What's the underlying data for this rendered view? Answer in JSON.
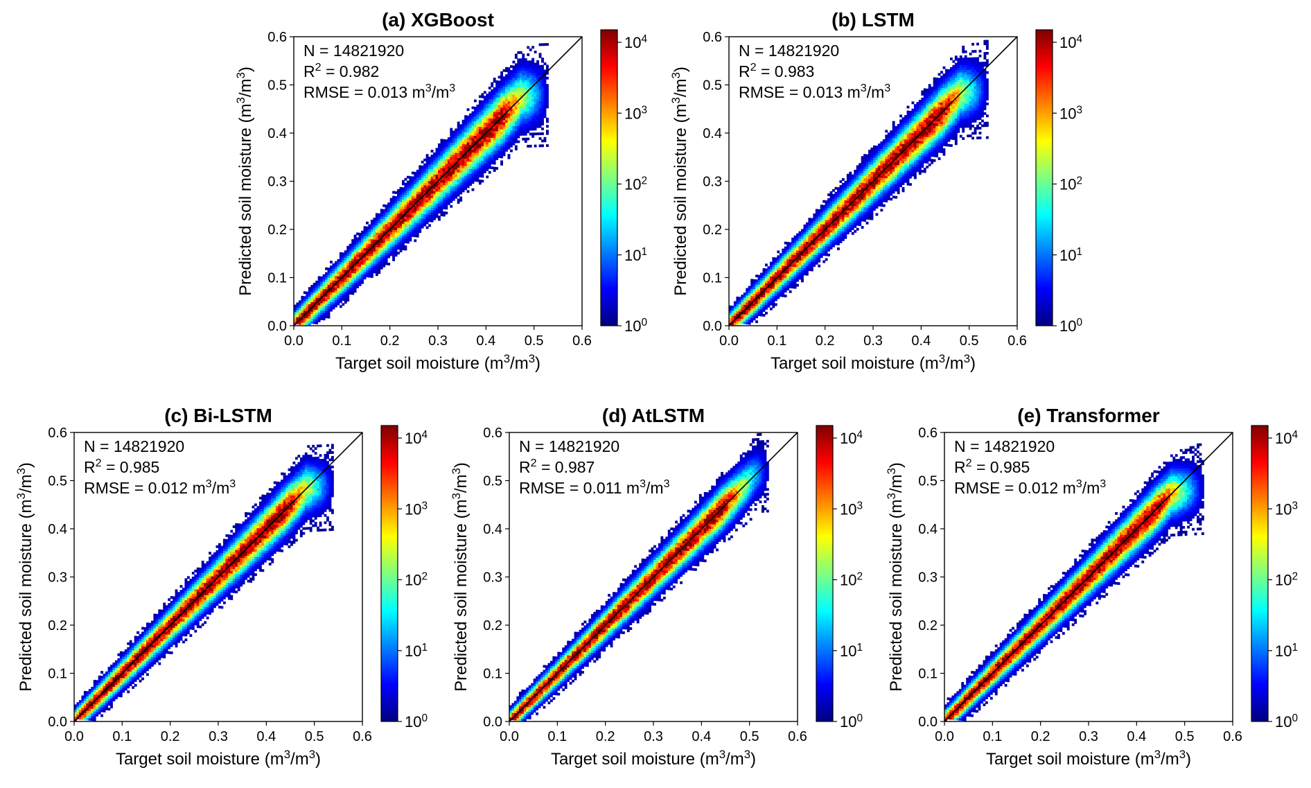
{
  "chart_data": [
    {
      "type": "heatmap",
      "title": "(a) XGBoost",
      "xlabel": "Target soil moisture (m³/m³)",
      "ylabel": "Predicted soil moisture (m³/m³)",
      "xlim": [
        0,
        0.6
      ],
      "ylim": [
        0,
        0.6
      ],
      "xticks": [
        "0.0",
        "0.1",
        "0.2",
        "0.3",
        "0.4",
        "0.5",
        "0.6"
      ],
      "yticks": [
        "0.0",
        "0.1",
        "0.2",
        "0.3",
        "0.4",
        "0.5",
        "0.6"
      ],
      "stats": [
        "N = 14821920",
        "R² = 0.982",
        "RMSE = 0.013 m³/m³"
      ],
      "colorbar": {
        "scale": "log",
        "range": [
          1,
          15000
        ],
        "ticks": [
          "10⁰",
          "10¹",
          "10²",
          "10³",
          "10⁴"
        ]
      },
      "one_to_one_line": [
        [
          0,
          0
        ],
        [
          0.6,
          0.6
        ]
      ],
      "density_spread": 0.014,
      "density_extent": [
        0.0,
        0.53
      ],
      "density_max_pred": 0.48
    },
    {
      "type": "heatmap",
      "title": "(b) LSTM",
      "xlabel": "Target soil moisture (m³/m³)",
      "ylabel": "Predicted soil moisture (m³/m³)",
      "xlim": [
        0,
        0.6
      ],
      "ylim": [
        0,
        0.6
      ],
      "xticks": [
        "0.0",
        "0.1",
        "0.2",
        "0.3",
        "0.4",
        "0.5",
        "0.6"
      ],
      "yticks": [
        "0.0",
        "0.1",
        "0.2",
        "0.3",
        "0.4",
        "0.5",
        "0.6"
      ],
      "stats": [
        "N = 14821920",
        "R² = 0.983",
        "RMSE = 0.013 m³/m³"
      ],
      "colorbar": {
        "scale": "log",
        "range": [
          1,
          15000
        ],
        "ticks": [
          "10⁰",
          "10¹",
          "10²",
          "10³",
          "10⁴"
        ]
      },
      "one_to_one_line": [
        [
          0,
          0
        ],
        [
          0.6,
          0.6
        ]
      ],
      "density_spread": 0.013,
      "density_extent": [
        0.0,
        0.54
      ],
      "density_max_pred": 0.49
    },
    {
      "type": "heatmap",
      "title": "(c) Bi-LSTM",
      "xlabel": "Target soil moisture (m³/m³)",
      "ylabel": "Predicted soil moisture (m³/m³)",
      "xlim": [
        0,
        0.6
      ],
      "ylim": [
        0,
        0.6
      ],
      "xticks": [
        "0.0",
        "0.1",
        "0.2",
        "0.3",
        "0.4",
        "0.5",
        "0.6"
      ],
      "yticks": [
        "0.0",
        "0.1",
        "0.2",
        "0.3",
        "0.4",
        "0.5",
        "0.6"
      ],
      "stats": [
        "N = 14821920",
        "R² = 0.985",
        "RMSE = 0.012 m³/m³"
      ],
      "colorbar": {
        "scale": "log",
        "range": [
          1,
          15000
        ],
        "ticks": [
          "10⁰",
          "10¹",
          "10²",
          "10³",
          "10⁴"
        ]
      },
      "one_to_one_line": [
        [
          0,
          0
        ],
        [
          0.6,
          0.6
        ]
      ],
      "density_spread": 0.012,
      "density_extent": [
        0.0,
        0.54
      ],
      "density_max_pred": 0.49
    },
    {
      "type": "heatmap",
      "title": "(d) AtLSTM",
      "xlabel": "Target soil moisture (m³/m³)",
      "ylabel": "Predicted soil moisture (m³/m³)",
      "xlim": [
        0,
        0.6
      ],
      "ylim": [
        0,
        0.6
      ],
      "xticks": [
        "0.0",
        "0.1",
        "0.2",
        "0.3",
        "0.4",
        "0.5",
        "0.6"
      ],
      "yticks": [
        "0.0",
        "0.1",
        "0.2",
        "0.3",
        "0.4",
        "0.5",
        "0.6"
      ],
      "stats": [
        "N = 14821920",
        "R² = 0.987",
        "RMSE = 0.011 m³/m³"
      ],
      "colorbar": {
        "scale": "log",
        "range": [
          1,
          15000
        ],
        "ticks": [
          "10⁰",
          "10¹",
          "10²",
          "10³",
          "10⁴"
        ]
      },
      "one_to_one_line": [
        [
          0,
          0
        ],
        [
          0.6,
          0.6
        ]
      ],
      "density_spread": 0.011,
      "density_extent": [
        0.0,
        0.54
      ],
      "density_max_pred": 0.52
    },
    {
      "type": "heatmap",
      "title": "(e) Transformer",
      "xlabel": "Target soil moisture (m³/m³)",
      "ylabel": "Predicted soil moisture (m³/m³)",
      "xlim": [
        0,
        0.6
      ],
      "ylim": [
        0,
        0.6
      ],
      "xticks": [
        "0.0",
        "0.1",
        "0.2",
        "0.3",
        "0.4",
        "0.5",
        "0.6"
      ],
      "yticks": [
        "0.0",
        "0.1",
        "0.2",
        "0.3",
        "0.4",
        "0.5",
        "0.6"
      ],
      "stats": [
        "N = 14821920",
        "R² = 0.985",
        "RMSE = 0.012 m³/m³"
      ],
      "colorbar": {
        "scale": "log",
        "range": [
          1,
          15000
        ],
        "ticks": [
          "10⁰",
          "10¹",
          "10²",
          "10³",
          "10⁴"
        ]
      },
      "one_to_one_line": [
        [
          0,
          0
        ],
        [
          0.6,
          0.6
        ]
      ],
      "density_spread": 0.012,
      "density_extent": [
        0.0,
        0.54
      ],
      "density_max_pred": 0.48
    }
  ],
  "colormap": [
    "#00007f",
    "#0000ff",
    "#007fff",
    "#00ffff",
    "#7fff7f",
    "#ffff00",
    "#ff7f00",
    "#ff0000",
    "#7f0000"
  ],
  "line_color": "#000000"
}
